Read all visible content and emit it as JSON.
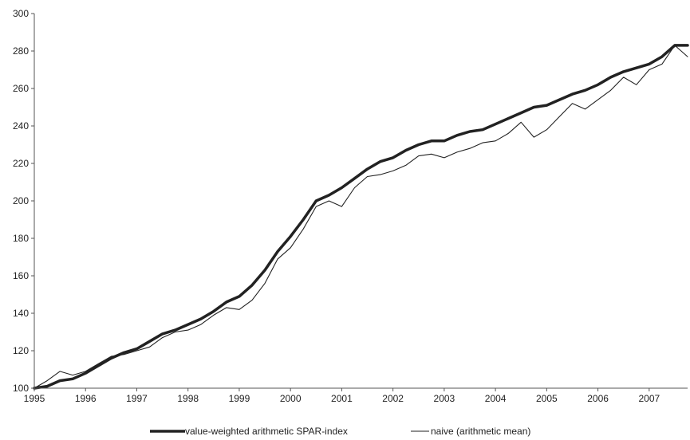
{
  "chart_data": {
    "type": "line",
    "title": "",
    "xlabel": "",
    "ylabel": "",
    "xlim": [
      1995,
      2007.75
    ],
    "ylim": [
      100,
      300
    ],
    "x_ticks": [
      1995,
      1996,
      1997,
      1998,
      1999,
      2000,
      2001,
      2002,
      2003,
      2004,
      2005,
      2006,
      2007
    ],
    "y_ticks": [
      100,
      120,
      140,
      160,
      180,
      200,
      220,
      240,
      260,
      280,
      300
    ],
    "grid": false,
    "legend_position": "bottom",
    "series": [
      {
        "name": "value-weighted arithmetic SPAR-index",
        "line_style": "thick",
        "color": "#222222",
        "points": [
          [
            1995.0,
            100
          ],
          [
            1995.25,
            101
          ],
          [
            1995.5,
            104
          ],
          [
            1995.75,
            105
          ],
          [
            1996.0,
            108
          ],
          [
            1996.25,
            112
          ],
          [
            1996.5,
            116
          ],
          [
            1996.75,
            119
          ],
          [
            1997.0,
            121
          ],
          [
            1997.25,
            125
          ],
          [
            1997.5,
            129
          ],
          [
            1997.75,
            131
          ],
          [
            1998.0,
            134
          ],
          [
            1998.25,
            137
          ],
          [
            1998.5,
            141
          ],
          [
            1998.75,
            146
          ],
          [
            1999.0,
            149
          ],
          [
            1999.25,
            155
          ],
          [
            1999.5,
            163
          ],
          [
            1999.75,
            173
          ],
          [
            2000.0,
            181
          ],
          [
            2000.25,
            190
          ],
          [
            2000.5,
            200
          ],
          [
            2000.75,
            203
          ],
          [
            2001.0,
            207
          ],
          [
            2001.25,
            212
          ],
          [
            2001.5,
            217
          ],
          [
            2001.75,
            221
          ],
          [
            2002.0,
            223
          ],
          [
            2002.25,
            227
          ],
          [
            2002.5,
            230
          ],
          [
            2002.75,
            232
          ],
          [
            2003.0,
            232
          ],
          [
            2003.25,
            235
          ],
          [
            2003.5,
            237
          ],
          [
            2003.75,
            238
          ],
          [
            2004.0,
            241
          ],
          [
            2004.25,
            244
          ],
          [
            2004.5,
            247
          ],
          [
            2004.75,
            250
          ],
          [
            2005.0,
            251
          ],
          [
            2005.25,
            254
          ],
          [
            2005.5,
            257
          ],
          [
            2005.75,
            259
          ],
          [
            2006.0,
            262
          ],
          [
            2006.25,
            266
          ],
          [
            2006.5,
            269
          ],
          [
            2006.75,
            271
          ],
          [
            2007.0,
            273
          ],
          [
            2007.25,
            277
          ],
          [
            2007.5,
            283
          ],
          [
            2007.75,
            283
          ]
        ]
      },
      {
        "name": "naive (arithmetic mean)",
        "line_style": "thin",
        "color": "#222222",
        "points": [
          [
            1995.0,
            100
          ],
          [
            1995.25,
            104
          ],
          [
            1995.5,
            109
          ],
          [
            1995.75,
            107
          ],
          [
            1996.0,
            109
          ],
          [
            1996.25,
            113
          ],
          [
            1996.5,
            117
          ],
          [
            1996.75,
            118
          ],
          [
            1997.0,
            120
          ],
          [
            1997.25,
            122
          ],
          [
            1997.5,
            127
          ],
          [
            1997.75,
            130
          ],
          [
            1998.0,
            131
          ],
          [
            1998.25,
            134
          ],
          [
            1998.5,
            139
          ],
          [
            1998.75,
            143
          ],
          [
            1999.0,
            142
          ],
          [
            1999.25,
            147
          ],
          [
            1999.5,
            156
          ],
          [
            1999.75,
            169
          ],
          [
            2000.0,
            175
          ],
          [
            2000.25,
            185
          ],
          [
            2000.5,
            197
          ],
          [
            2000.75,
            200
          ],
          [
            2001.0,
            197
          ],
          [
            2001.25,
            207
          ],
          [
            2001.5,
            213
          ],
          [
            2001.75,
            214
          ],
          [
            2002.0,
            216
          ],
          [
            2002.25,
            219
          ],
          [
            2002.5,
            224
          ],
          [
            2002.75,
            225
          ],
          [
            2003.0,
            223
          ],
          [
            2003.25,
            226
          ],
          [
            2003.5,
            228
          ],
          [
            2003.75,
            231
          ],
          [
            2004.0,
            232
          ],
          [
            2004.25,
            236
          ],
          [
            2004.5,
            242
          ],
          [
            2004.75,
            234
          ],
          [
            2005.0,
            238
          ],
          [
            2005.25,
            245
          ],
          [
            2005.5,
            252
          ],
          [
            2005.75,
            249
          ],
          [
            2006.0,
            254
          ],
          [
            2006.25,
            259
          ],
          [
            2006.5,
            266
          ],
          [
            2006.75,
            262
          ],
          [
            2007.0,
            270
          ],
          [
            2007.25,
            273
          ],
          [
            2007.5,
            283
          ],
          [
            2007.75,
            277
          ]
        ]
      }
    ]
  }
}
